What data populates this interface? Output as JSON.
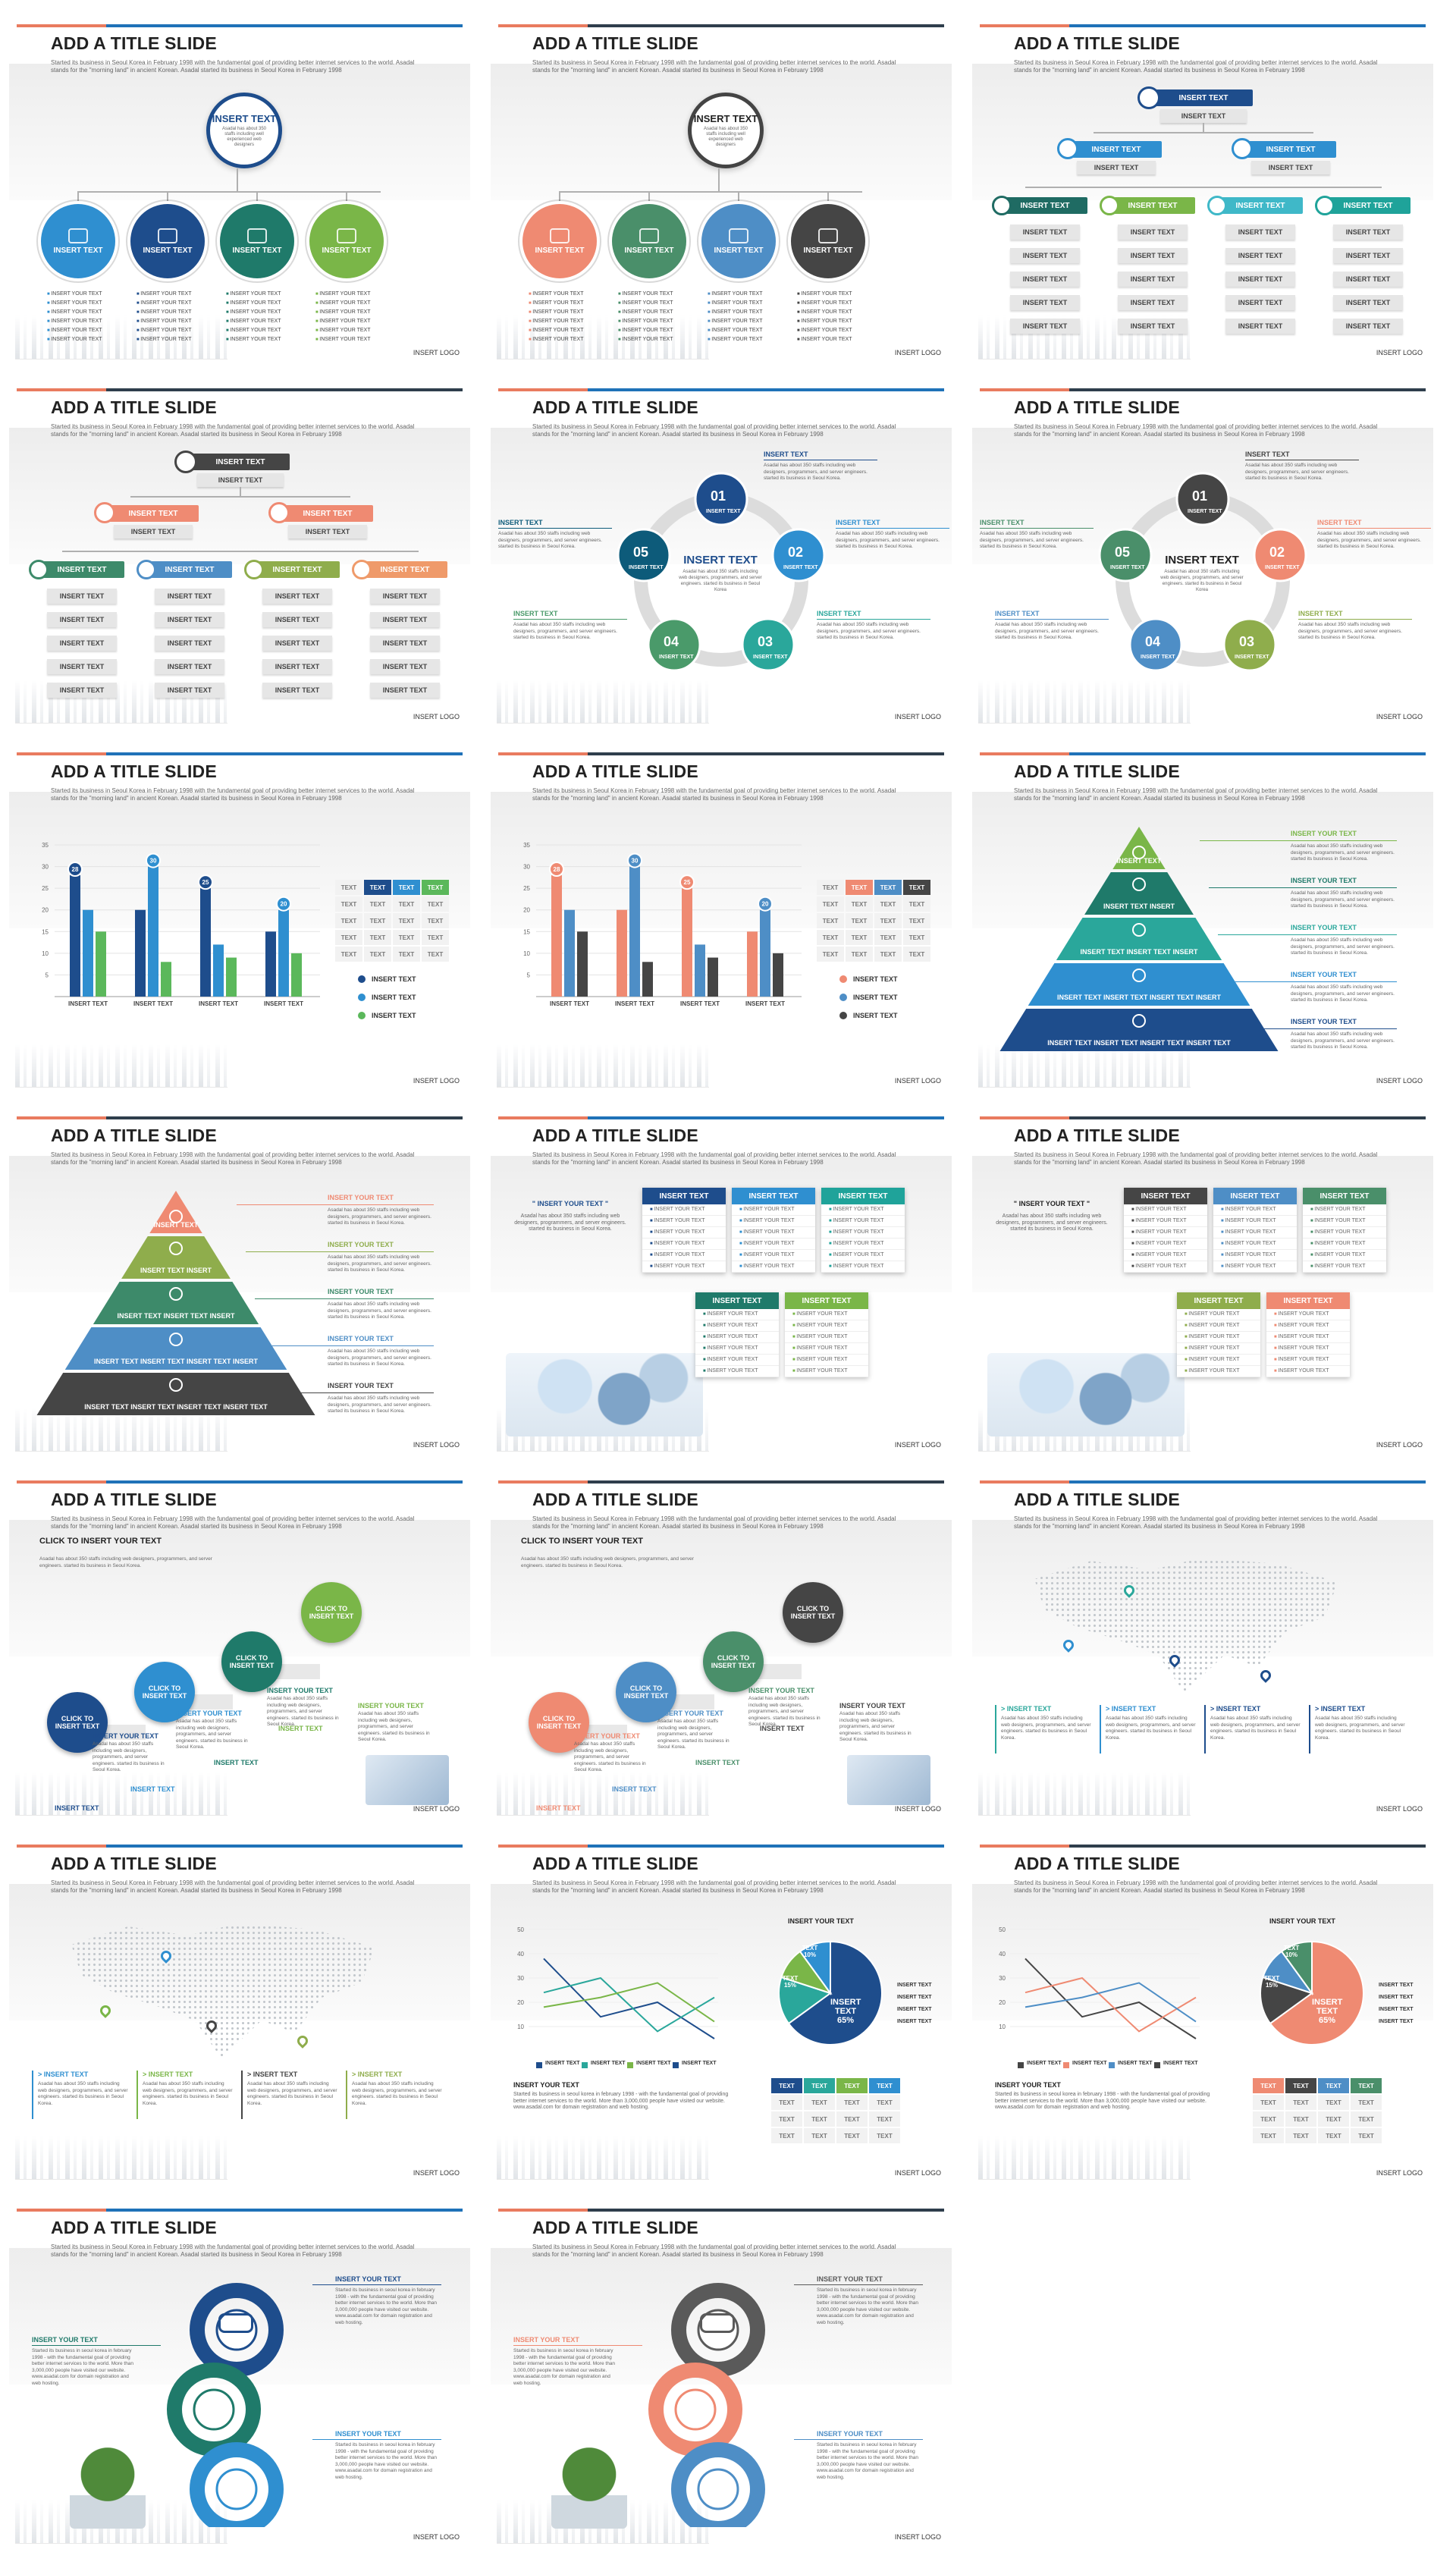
{
  "common": {
    "title": "ADD A TITLE SLIDE",
    "subtitle": "Started its business in Seoul Korea in February 1998 with the fundamental goal of providing better internet services to the world. Asadal stands for the \"morning land\" in ancient Korean. Asadal started its business in Seoul Korea in February 1998",
    "logo": "INSERT LOGO",
    "insert_text": "INSERT TEXT",
    "insert_your_text": "INSERT YOUR TEXT",
    "quoted_insert": "\" INSERT YOUR TEXT \"",
    "text": "TEXT",
    "small_para": "Asadal has about 350 staffs including web designers, programmers, and server engineers. started its business in Seoul Korea.",
    "bullet_item": "INSERT YOUR TEXT",
    "click_to_insert": "CLICK TO INSERT TEXT",
    "click_to_insert_your_text": "CLICK TO INSERT YOUR TEXT",
    "insert_text_sub": "Asadal has about 350 staffs including well experienced web designers",
    "center_sub": "Asadal has about 350 staffs including web designers, programmers, and server engineers. started its business in Seoul Korea",
    "seoul_para": "Started its business in seoul korea in february 1998 - with the fundamental goal of providing better internet services to the world. More than 3,000,000 people have visited our website. www.asadal.com for domain registration and web hosting.",
    "arrow_para": "Started its business in seoul korea in february 1998 - with the fundamental goal of providing better internet services to the world. More than 3,000,000 people have visited our website. www.asadal.com for domain registration and web hosting.",
    "pyr": [
      "INSERT TEXT",
      "INSERT TEXT INSERT",
      "INSERT TEXT INSERT TEXT INSERT",
      "INSERT TEXT INSERT TEXT INSERT TEXT INSERT",
      "INSERT TEXT INSERT TEXT INSERT TEXT INSERT TEXT"
    ],
    "cycle_nums": [
      "01",
      "02",
      "03",
      "04",
      "05"
    ],
    "pie_values": {
      "a": "TEXT 10%",
      "b": "TEXT 15%",
      "c": "INSERT TEXT 65%"
    }
  },
  "palette_blue": [
    "#1e4d8c",
    "#2f8fd0",
    "#2aa79b",
    "#7ab648",
    "#0d5b7a"
  ],
  "palette_warm": [
    "#ef8a72",
    "#4a8f6a",
    "#4e8ec6",
    "#454545",
    "#8fad4c"
  ],
  "chart_data": [
    {
      "type": "bar",
      "categories": [
        "INSERT TEXT",
        "INSERT TEXT",
        "INSERT TEXT",
        "INSERT TEXT"
      ],
      "series": [
        {
          "name": "INSERT TEXT",
          "values": [
            28,
            20,
            25,
            15
          ]
        },
        {
          "name": "INSERT TEXT",
          "values": [
            20,
            30,
            12,
            20
          ]
        },
        {
          "name": "INSERT TEXT",
          "values": [
            15,
            8,
            9,
            10
          ]
        }
      ],
      "ylim": [
        0,
        35
      ],
      "yticks": [
        5,
        10,
        15,
        20,
        25,
        30,
        35
      ],
      "callouts": [
        "28",
        "30",
        "25",
        "20"
      ]
    },
    {
      "type": "line",
      "series": [
        {
          "values": [
            38,
            14,
            20,
            5
          ]
        },
        {
          "values": [
            24,
            30,
            8,
            22
          ]
        },
        {
          "values": [
            18,
            22,
            28,
            12
          ]
        }
      ],
      "ylim": [
        0,
        50
      ],
      "yticks": [
        10,
        20,
        30,
        40,
        50
      ]
    },
    {
      "type": "pie",
      "values": [
        65,
        15,
        10,
        10
      ]
    }
  ]
}
